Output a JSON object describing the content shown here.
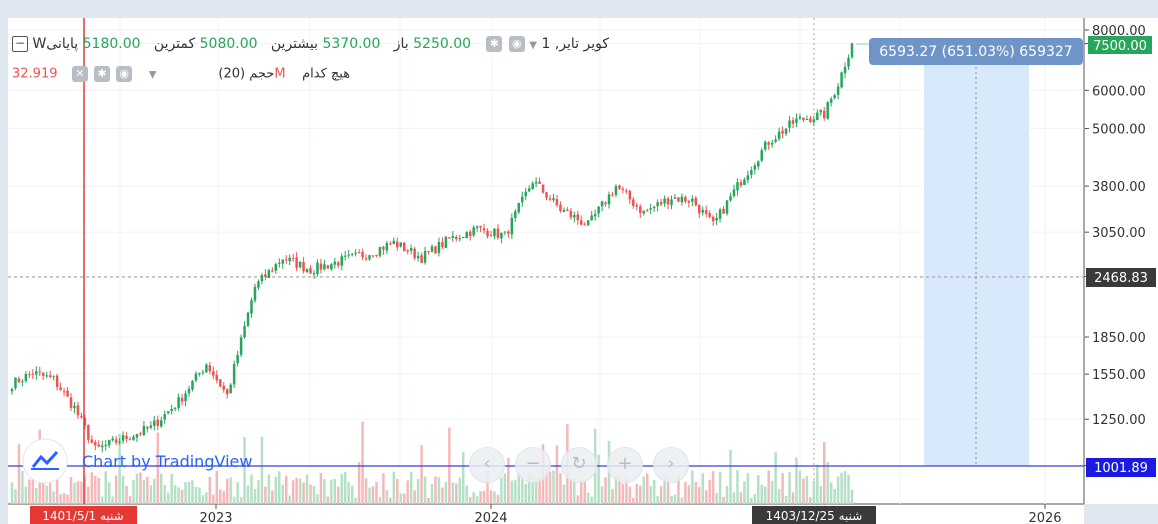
{
  "header": {
    "symbol": "Wکویر تایر, 1",
    "open_label": "باز",
    "open_value": "5250.00",
    "high_label": "بیشترین",
    "high_value": "5370.00",
    "low_label": "کمترین",
    "low_value": "5080.00",
    "close_label": "پایانی",
    "close_value": "5180.00"
  },
  "volume_row": {
    "label": "حجم (20)",
    "none_label": "هیچ کدام",
    "value": "32.919M"
  },
  "measure_label": "6593.27 (651.03%) 659327",
  "watermark": "Chart by TradingView",
  "colors": {
    "up": "#26a65b",
    "down": "#ef5350",
    "up_volume": "#b6e0c6",
    "down_volume": "#f3b9b9",
    "baseline": "#3d3ddb",
    "crosshair": "#e53935",
    "range": "#d8e9fb",
    "accent": "#6f95c8"
  },
  "chart_data": {
    "type": "candlestick",
    "y_scale": "log",
    "y_tick_labels": [
      "8000.00",
      "7500.00",
      "6000.00",
      "5000.00",
      "3800.00",
      "3050.00",
      "2468.83",
      "1850.00",
      "1550.00",
      "1250.00",
      "1001.89"
    ],
    "x_tick_labels": [
      "2023",
      "2024",
      "2026"
    ],
    "price_badges": [
      {
        "value": "7500.00",
        "kind": "last"
      },
      {
        "value": "2468.83",
        "kind": "crosshair"
      },
      {
        "value": "1001.89",
        "kind": "baseline"
      }
    ],
    "date_badges": [
      {
        "label": "شنبه  1401/5/1",
        "kind": "crosshair"
      },
      {
        "label": "شنبه  1403/12/25",
        "kind": "cursor"
      }
    ],
    "baseline_value": 1001.89,
    "last_price": 7500,
    "anchor_points": [
      {
        "i": 0,
        "p": 1480
      },
      {
        "i": 6,
        "p": 1560
      },
      {
        "i": 12,
        "p": 1510
      },
      {
        "i": 18,
        "p": 1320
      },
      {
        "i": 24,
        "p": 1080
      },
      {
        "i": 32,
        "p": 1140
      },
      {
        "i": 40,
        "p": 1200
      },
      {
        "i": 48,
        "p": 1360
      },
      {
        "i": 56,
        "p": 1630
      },
      {
        "i": 62,
        "p": 1400
      },
      {
        "i": 70,
        "p": 2350
      },
      {
        "i": 78,
        "p": 2700
      },
      {
        "i": 86,
        "p": 2550
      },
      {
        "i": 94,
        "p": 2650
      },
      {
        "i": 102,
        "p": 2750
      },
      {
        "i": 110,
        "p": 2900
      },
      {
        "i": 118,
        "p": 2700
      },
      {
        "i": 126,
        "p": 2950
      },
      {
        "i": 134,
        "p": 3100
      },
      {
        "i": 142,
        "p": 3000
      },
      {
        "i": 150,
        "p": 3900
      },
      {
        "i": 158,
        "p": 3400
      },
      {
        "i": 166,
        "p": 3150
      },
      {
        "i": 174,
        "p": 3800
      },
      {
        "i": 182,
        "p": 3350
      },
      {
        "i": 190,
        "p": 3600
      },
      {
        "i": 196,
        "p": 3550
      },
      {
        "i": 202,
        "p": 3150
      },
      {
        "i": 210,
        "p": 3900
      },
      {
        "i": 218,
        "p": 4700
      },
      {
        "i": 226,
        "p": 5200
      },
      {
        "i": 234,
        "p": 5350
      },
      {
        "i": 238,
        "p": 6200
      },
      {
        "i": 242,
        "p": 7500
      }
    ]
  }
}
